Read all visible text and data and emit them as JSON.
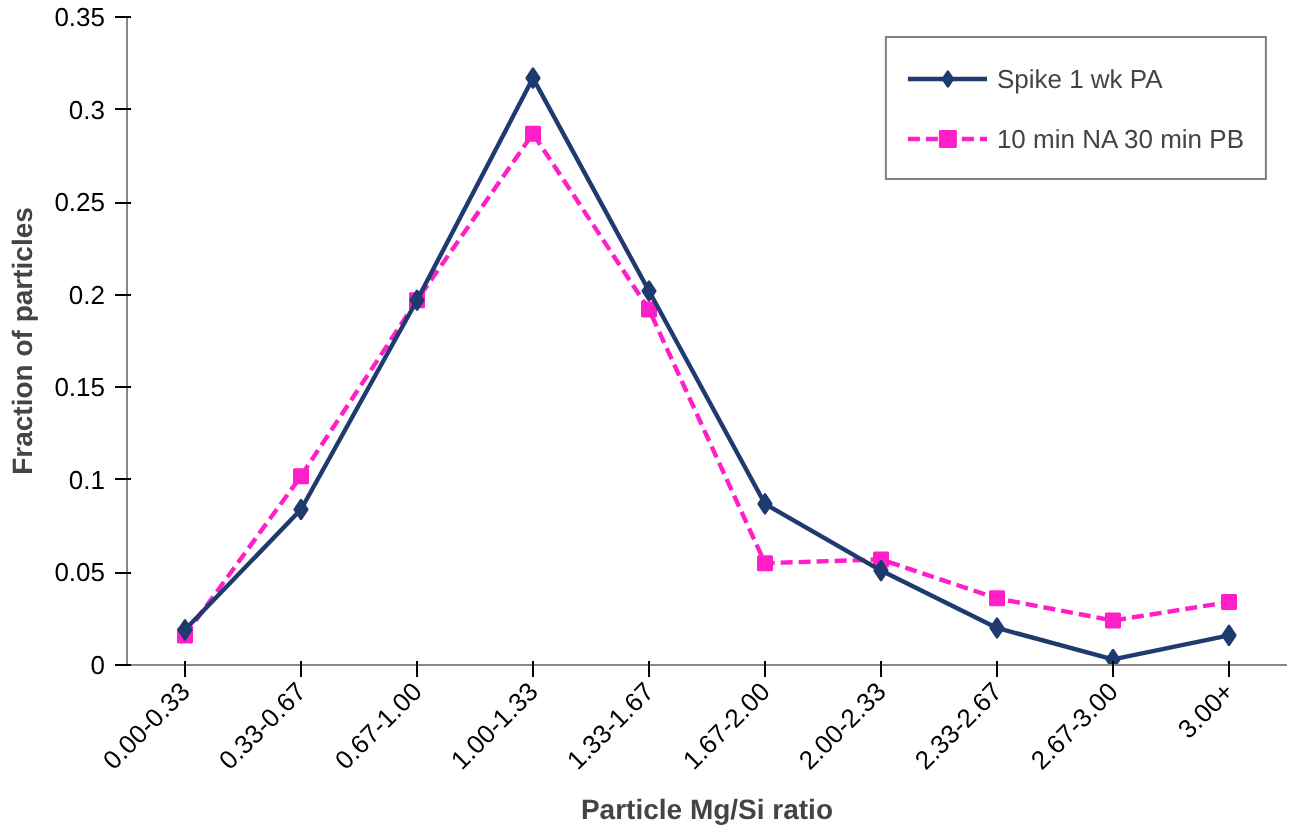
{
  "chart_data": {
    "type": "line",
    "xlabel": "Particle Mg/Si ratio",
    "ylabel": "Fraction of particles",
    "categories": [
      "0.00-0.33",
      "0.33-0.67",
      "0.67-1.00",
      "1.00-1.33",
      "1.33-1.67",
      "1.67-2.00",
      "2.00-2.33",
      "2.33-2.67",
      "2.67-3.00",
      "3.00+"
    ],
    "series": [
      {
        "name": "Spike 1 wk PA",
        "color": "#1f3a6e",
        "marker": "diamond",
        "line_style": "solid",
        "values": [
          0.019,
          0.084,
          0.197,
          0.317,
          0.202,
          0.087,
          0.051,
          0.02,
          0.003,
          0.016
        ]
      },
      {
        "name": "10 min NA 30 min PB",
        "color": "#ff1fc8",
        "marker": "square",
        "line_style": "dashed",
        "values": [
          0.016,
          0.102,
          0.197,
          0.287,
          0.192,
          0.055,
          0.057,
          0.036,
          0.024,
          0.034
        ]
      }
    ],
    "ylim": [
      0,
      0.35
    ],
    "yticks": [
      {
        "value": 0,
        "label": "0"
      },
      0.05,
      0.1,
      0.15,
      0.2,
      0.25,
      0.3,
      0.35
    ],
    "grid": false,
    "legend": "top right"
  }
}
